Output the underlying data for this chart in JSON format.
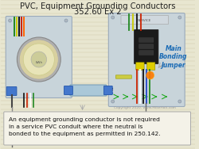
{
  "title_line1": "PVC, Equipment Grounding Conductors",
  "title_line2": "352.60 Ex 2",
  "title_fontsize": 7.2,
  "bg_color": "#e8e6d0",
  "panel_color": "#c8d4da",
  "panel_edge": "#9aaabb",
  "annotation_text": "An equipment grounding conductor is not required\nin a service PVC conduit where the neutral is\nbonded to the equipment as permitted in 250.142.",
  "annotation_fontsize": 5.4,
  "label_text": "Main\nBonding\nJumper",
  "label_color": "#1a6bb5",
  "label_fontsize": 5.5,
  "copyright_text": "Copyright 2020, www.MikeHolt.com",
  "copyright_fontsize": 3.2,
  "line_colors": [
    "#c8c8a0",
    "#d8d6c0"
  ],
  "conduit_color": "#aac8d8",
  "conduit_edge": "#7aa0b8"
}
